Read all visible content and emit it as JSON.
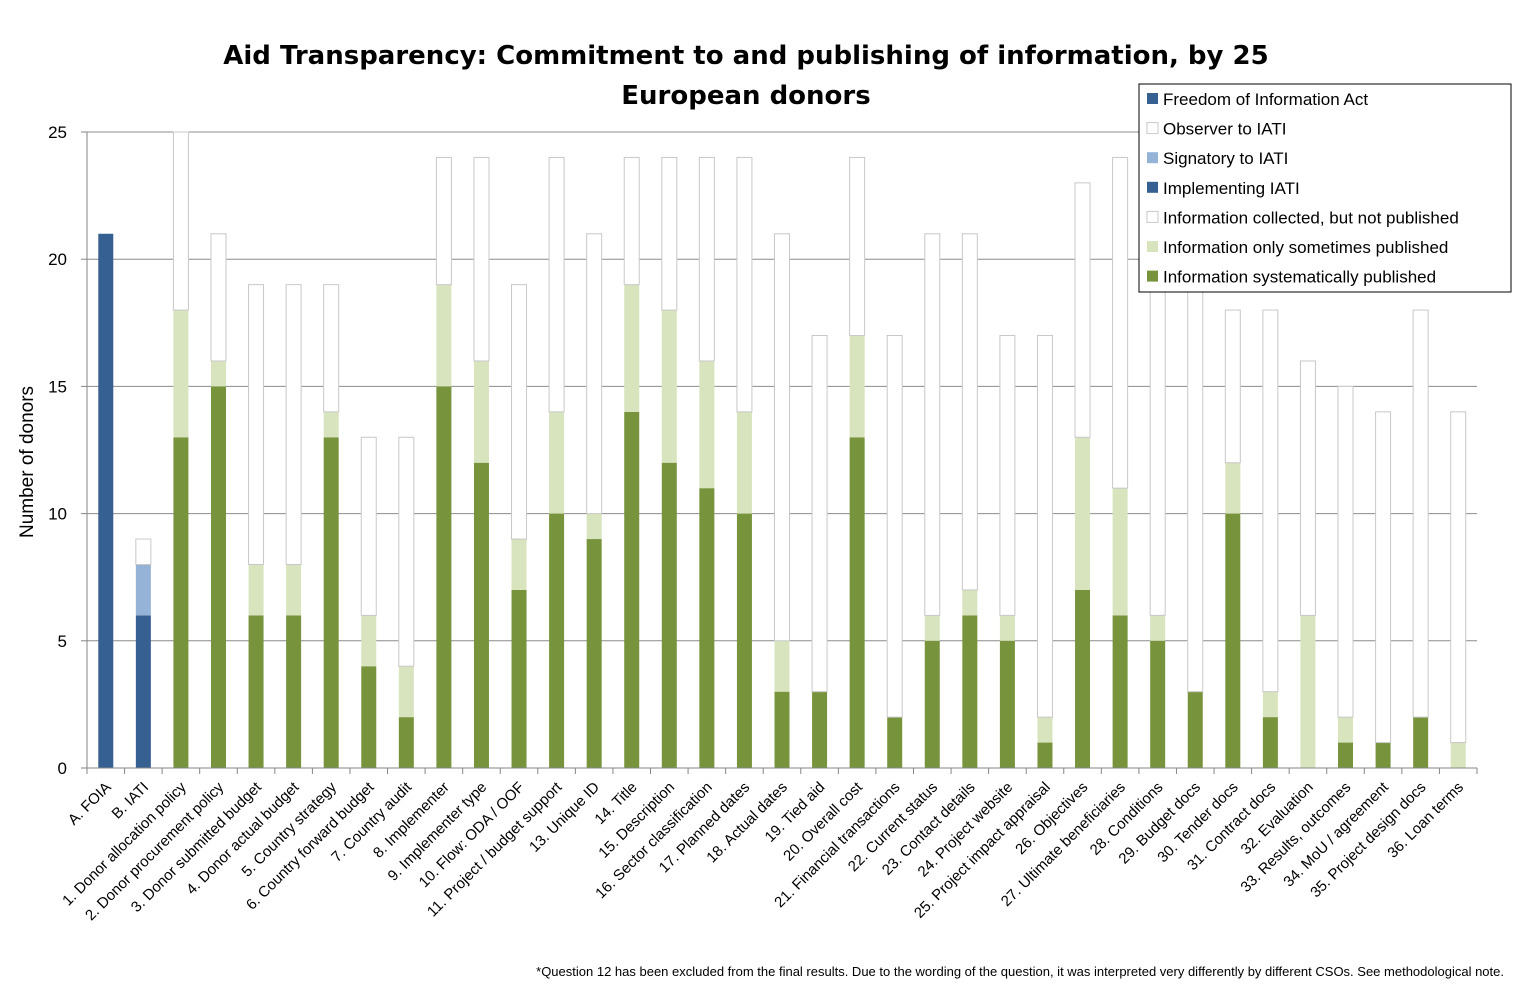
{
  "chart_data": {
    "type": "bar",
    "stacked": true,
    "title_lines": [
      "Aid Transparency: Commitment to and publishing of information, by 25",
      "European donors"
    ],
    "ylabel": "Number of donors",
    "xlabel": "",
    "ylim": [
      0,
      25
    ],
    "yticks": [
      0,
      5,
      10,
      15,
      20,
      25
    ],
    "grid": true,
    "legend_position": "top-right",
    "footnote": "*Question 12 has been excluded from the final results. Due to the wording of the question, it was interpreted very differently by different CSOs. See methodological note.",
    "categories": [
      "A. FOIA",
      "B. IATI",
      "1. Donor allocation policy",
      "2. Donor procurement policy",
      "3. Donor submitted budget",
      "4. Donor actual budget",
      "5. Country strategy",
      "6. Country forward budget",
      "7. Country audit",
      "8. Implementer",
      "9. Implementer type",
      "10. Flow: ODA / OOF",
      "11. Project / budget support",
      "13. Unique ID",
      "14. Title",
      "15. Description",
      "16. Sector classification",
      "17. Planned dates",
      "18. Actual dates",
      "19. Tied aid",
      "20. Overall cost",
      "21. Financial transactions",
      "22. Current status",
      "23. Contact details",
      "24. Project website",
      "25. Project impact appraisal",
      "26. Objectives",
      "27. Ultimate beneficiaries",
      "28. Conditions",
      "29. Budget docs",
      "30. Tender docs",
      "31. Contract docs",
      "32. Evaluation",
      "33. Results, outcomes",
      "34. MoU / agreement",
      "35. Project design docs",
      "36. Loan terms"
    ],
    "series": [
      {
        "name": "Freedom of Information Act",
        "color": "#376092",
        "values": [
          21,
          0,
          0,
          0,
          0,
          0,
          0,
          0,
          0,
          0,
          0,
          0,
          0,
          0,
          0,
          0,
          0,
          0,
          0,
          0,
          0,
          0,
          0,
          0,
          0,
          0,
          0,
          0,
          0,
          0,
          0,
          0,
          0,
          0,
          0,
          0,
          0
        ]
      },
      {
        "name": "Implementing IATI",
        "color": "#376092",
        "values": [
          0,
          6,
          0,
          0,
          0,
          0,
          0,
          0,
          0,
          0,
          0,
          0,
          0,
          0,
          0,
          0,
          0,
          0,
          0,
          0,
          0,
          0,
          0,
          0,
          0,
          0,
          0,
          0,
          0,
          0,
          0,
          0,
          0,
          0,
          0,
          0,
          0
        ]
      },
      {
        "name": "Signatory to IATI",
        "color": "#95b3d7",
        "values": [
          0,
          2,
          0,
          0,
          0,
          0,
          0,
          0,
          0,
          0,
          0,
          0,
          0,
          0,
          0,
          0,
          0,
          0,
          0,
          0,
          0,
          0,
          0,
          0,
          0,
          0,
          0,
          0,
          0,
          0,
          0,
          0,
          0,
          0,
          0,
          0,
          0
        ]
      },
      {
        "name": "Observer to IATI",
        "color": "#ffffff",
        "values": [
          0,
          1,
          0,
          0,
          0,
          0,
          0,
          0,
          0,
          0,
          0,
          0,
          0,
          0,
          0,
          0,
          0,
          0,
          0,
          0,
          0,
          0,
          0,
          0,
          0,
          0,
          0,
          0,
          0,
          0,
          0,
          0,
          0,
          0,
          0,
          0,
          0
        ]
      },
      {
        "name": "Information systematically published",
        "color": "#77933c",
        "values": [
          0,
          0,
          13,
          15,
          6,
          6,
          13,
          4,
          2,
          15,
          12,
          7,
          10,
          9,
          14,
          12,
          11,
          10,
          3,
          3,
          13,
          2,
          5,
          6,
          5,
          1,
          7,
          6,
          5,
          3,
          10,
          2,
          0,
          1,
          1,
          2,
          0
        ]
      },
      {
        "name": "Information only sometimes published",
        "color": "#d7e4bd",
        "values": [
          0,
          0,
          5,
          1,
          2,
          2,
          1,
          2,
          2,
          4,
          4,
          2,
          4,
          1,
          5,
          6,
          5,
          4,
          2,
          0,
          4,
          0,
          1,
          1,
          1,
          1,
          6,
          5,
          1,
          0,
          2,
          1,
          6,
          1,
          0,
          0,
          1
        ]
      },
      {
        "name": "Information collected, but not published",
        "color": "#ffffff",
        "values": [
          0,
          0,
          7,
          5,
          11,
          11,
          5,
          7,
          9,
          5,
          8,
          10,
          10,
          11,
          5,
          6,
          8,
          10,
          16,
          14,
          7,
          15,
          15,
          14,
          11,
          15,
          10,
          13,
          13,
          16,
          6,
          15,
          10,
          13,
          13,
          16,
          13
        ]
      }
    ],
    "legend_order": [
      "Freedom of Information Act",
      "Observer to IATI",
      "Signatory to IATI",
      "Implementing IATI",
      "Information collected, but not published",
      "Information only sometimes published",
      "Information systematically published"
    ]
  }
}
